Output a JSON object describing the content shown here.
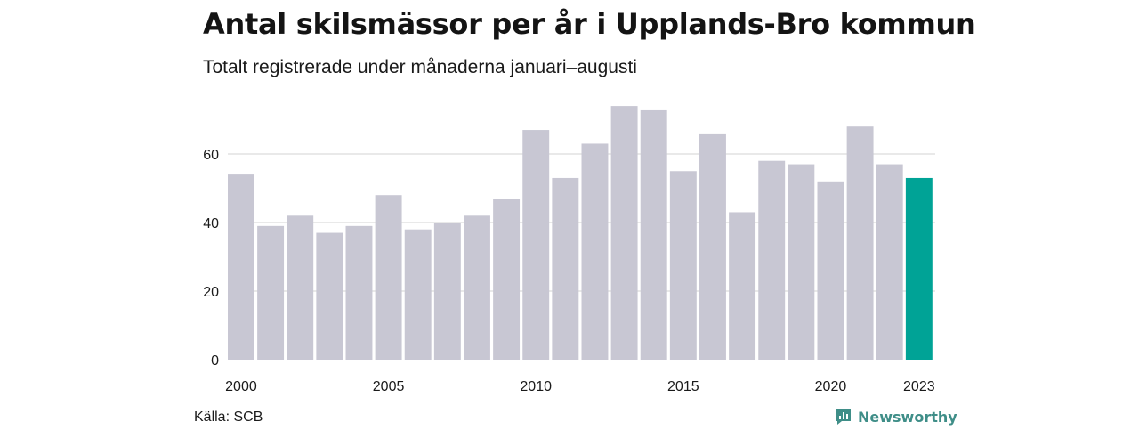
{
  "chart_data": {
    "type": "bar",
    "title": "Antal skilsmässor per år i Upplands-Bro kommun",
    "subtitle": "Totalt registrerade under månaderna januari–augusti",
    "categories": [
      2000,
      2001,
      2002,
      2003,
      2004,
      2005,
      2006,
      2007,
      2008,
      2009,
      2010,
      2011,
      2012,
      2013,
      2014,
      2015,
      2016,
      2017,
      2018,
      2019,
      2020,
      2021,
      2022,
      2023
    ],
    "values": [
      54,
      39,
      42,
      37,
      39,
      48,
      38,
      40,
      42,
      47,
      67,
      53,
      63,
      74,
      73,
      55,
      66,
      43,
      58,
      57,
      52,
      68,
      57,
      53
    ],
    "highlight_index": 23,
    "x_tick_labels": [
      "2000",
      "2005",
      "2010",
      "2015",
      "2020",
      "2023"
    ],
    "y_ticks": [
      0,
      20,
      40,
      60
    ],
    "ylim": [
      0,
      80
    ],
    "xlabel": "",
    "ylabel": "",
    "grid": true,
    "colors": {
      "bar": "#c8c7d3",
      "highlight": "#00a396",
      "grid": "#e2e2e2"
    }
  },
  "footer": {
    "source": "Källa: SCB",
    "brand": "Newsworthy",
    "brand_icon": "newsworthy-logo-icon",
    "brand_color": "#3f8e88"
  }
}
